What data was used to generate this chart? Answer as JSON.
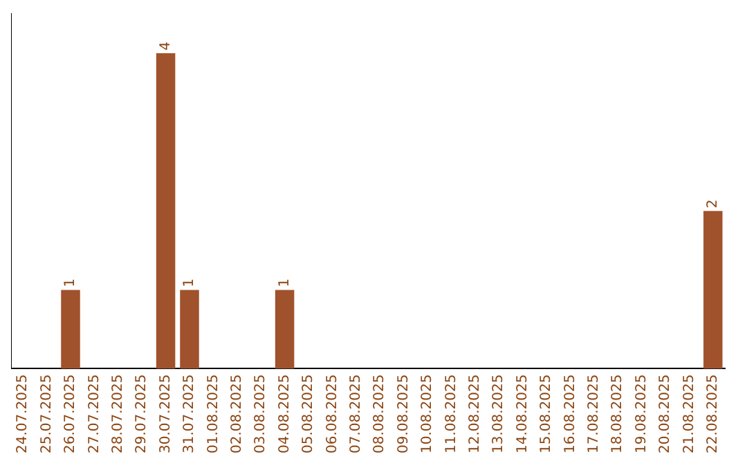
{
  "chart_data": {
    "type": "bar",
    "categories": [
      "24.07.2025",
      "25.07.2025",
      "26.07.2025",
      "27.07.2025",
      "28.07.2025",
      "29.07.2025",
      "30.07.2025",
      "31.07.2025",
      "01.08.2025",
      "02.08.2025",
      "03.08.2025",
      "04.08.2025",
      "05.08.2025",
      "06.08.2025",
      "07.08.2025",
      "08.08.2025",
      "09.08.2025",
      "10.08.2025",
      "11.08.2025",
      "12.08.2025",
      "13.08.2025",
      "14.08.2025",
      "15.08.2025",
      "16.08.2025",
      "17.08.2025",
      "18.08.2025",
      "19.08.2025",
      "20.08.2025",
      "21.08.2025",
      "22.08.2025"
    ],
    "values": [
      0,
      0,
      1,
      0,
      0,
      0,
      4,
      1,
      0,
      0,
      0,
      1,
      0,
      0,
      0,
      0,
      0,
      0,
      0,
      0,
      0,
      0,
      0,
      0,
      0,
      0,
      0,
      0,
      0,
      2
    ],
    "value_labels": [
      null,
      null,
      "1",
      null,
      null,
      null,
      "4",
      "1",
      null,
      null,
      null,
      "1",
      null,
      null,
      null,
      null,
      null,
      null,
      null,
      null,
      null,
      null,
      null,
      null,
      null,
      null,
      null,
      null,
      null,
      "2"
    ],
    "color": "#a0522d",
    "grid": false,
    "legend": false,
    "tick_labels": "x"
  }
}
